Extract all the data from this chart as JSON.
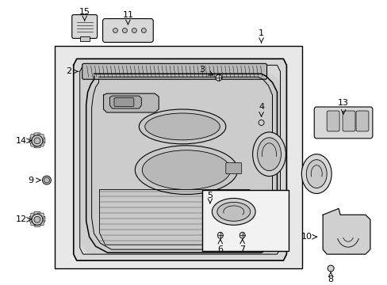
{
  "bg_color": "#ffffff",
  "line_color": "#000000",
  "gray_fill": "#e8e8e8",
  "dark_gray": "#c0c0c0",
  "mid_gray": "#d0d0d0",
  "light_gray": "#f0f0f0"
}
